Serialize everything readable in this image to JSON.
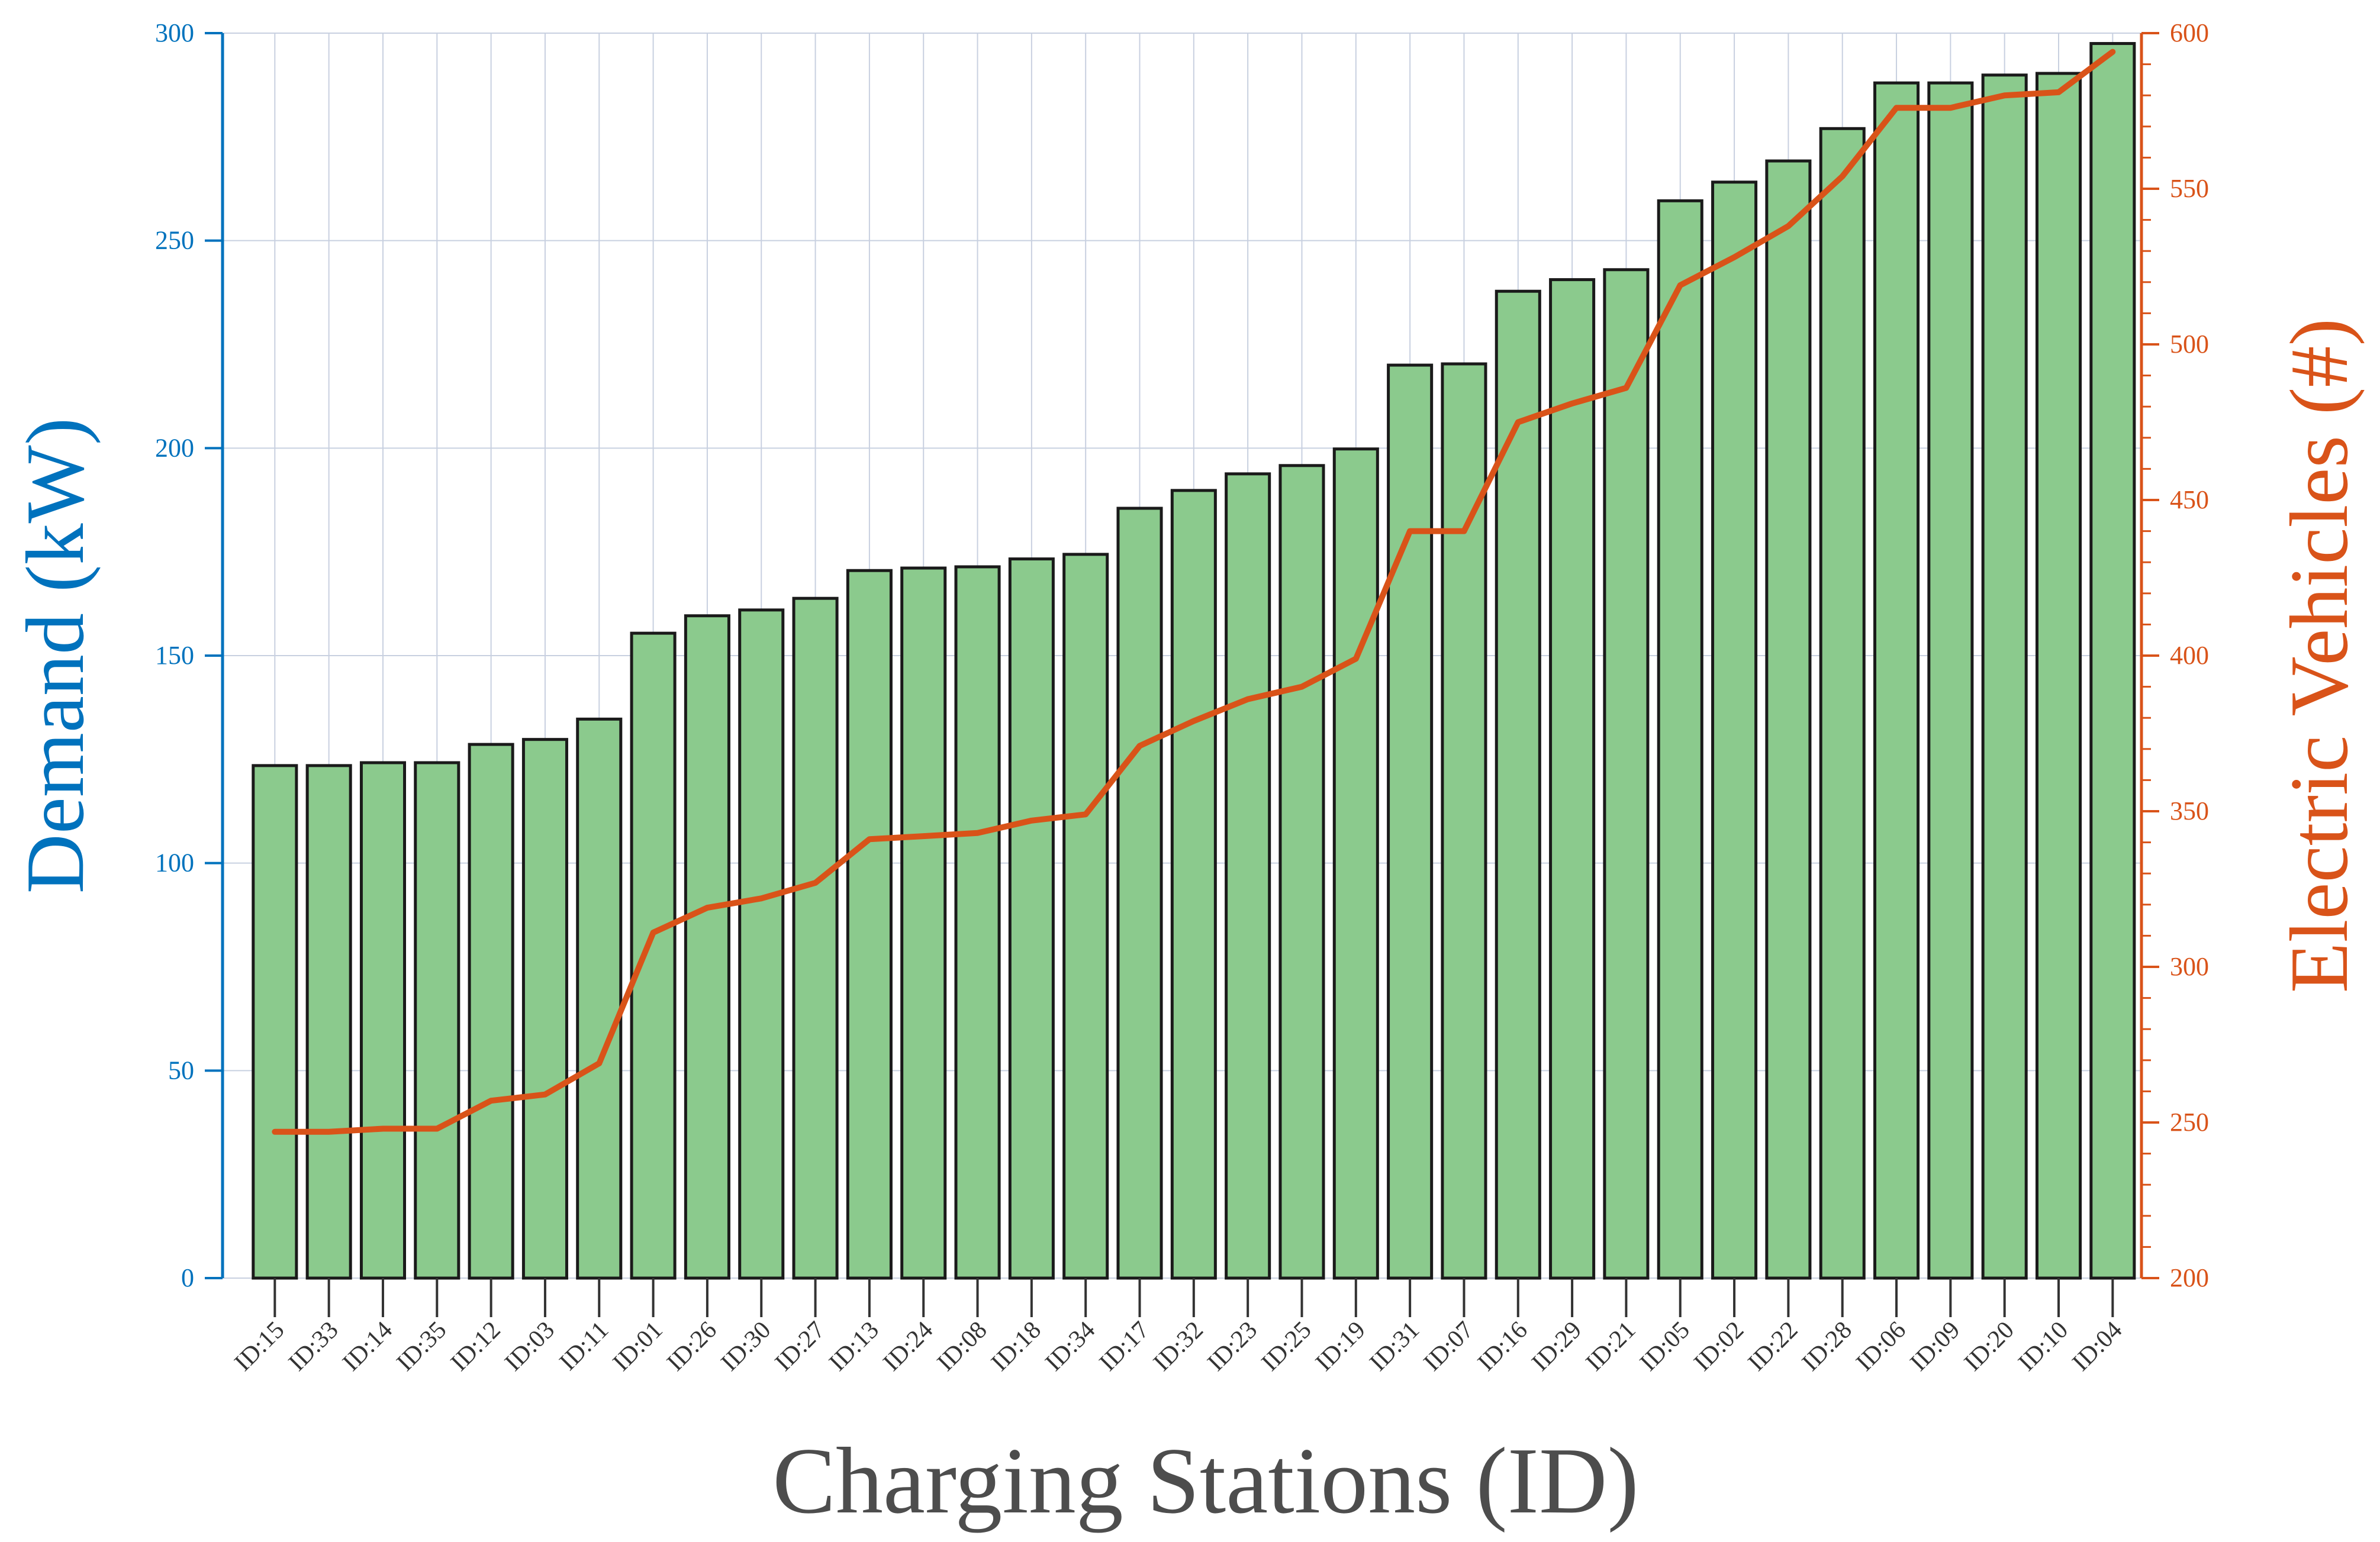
{
  "chart_data": {
    "type": "bar",
    "categories": [
      "ID:15",
      "ID:33",
      "ID:14",
      "ID:35",
      "ID:12",
      "ID:03",
      "ID:11",
      "ID:01",
      "ID:26",
      "ID:30",
      "ID:27",
      "ID:13",
      "ID:24",
      "ID:08",
      "ID:18",
      "ID:34",
      "ID:17",
      "ID:32",
      "ID:23",
      "ID:25",
      "ID:19",
      "ID:31",
      "ID:07",
      "ID:16",
      "ID:29",
      "ID:21",
      "ID:05",
      "ID:02",
      "ID:22",
      "ID:28",
      "ID:06",
      "ID:09",
      "ID:20",
      "ID:10",
      "ID:04"
    ],
    "series": [
      {
        "type": "bar",
        "axis": "left",
        "color": "#8bca8d",
        "edge_color": "#1a1a1a",
        "values": [
          123.5,
          123.5,
          124.2,
          124.2,
          128.6,
          129.8,
          134.7,
          155.4,
          159.6,
          161.0,
          163.8,
          170.5,
          171.1,
          171.4,
          173.3,
          174.4,
          185.5,
          189.8,
          193.8,
          195.8,
          199.8,
          220.0,
          220.3,
          237.8,
          240.6,
          243.0,
          259.6,
          264.1,
          269.2,
          277.0,
          288.0,
          288.0,
          289.9,
          290.3,
          297.5
        ]
      },
      {
        "type": "line",
        "axis": "right",
        "color": "#d95319",
        "values": [
          247,
          247,
          248,
          248,
          257,
          259,
          269,
          311,
          319,
          322,
          327,
          341,
          342,
          343,
          347,
          349,
          371,
          379,
          386,
          390,
          399,
          440,
          440,
          475,
          481,
          486,
          519,
          528,
          538,
          554,
          576,
          576,
          580,
          581,
          594
        ]
      }
    ],
    "title": "",
    "xlabel": "Charging Stations (ID)",
    "ylabel": "Demand (kW)",
    "y2label": "Electric Vehicles (#)",
    "ylim": [
      0,
      300
    ],
    "y2lim": [
      200,
      600
    ],
    "yticks": [
      0,
      50,
      100,
      150,
      200,
      250,
      300
    ],
    "y2ticks": [
      200,
      250,
      300,
      350,
      400,
      450,
      500,
      550,
      600
    ],
    "grid": true,
    "legend": "none",
    "colors": {
      "left_axis": "#0072bd",
      "right_axis": "#d95319",
      "grid": "#c8d0e0",
      "xlabel": "#4d4d4d",
      "tick_label": "#333333"
    }
  }
}
